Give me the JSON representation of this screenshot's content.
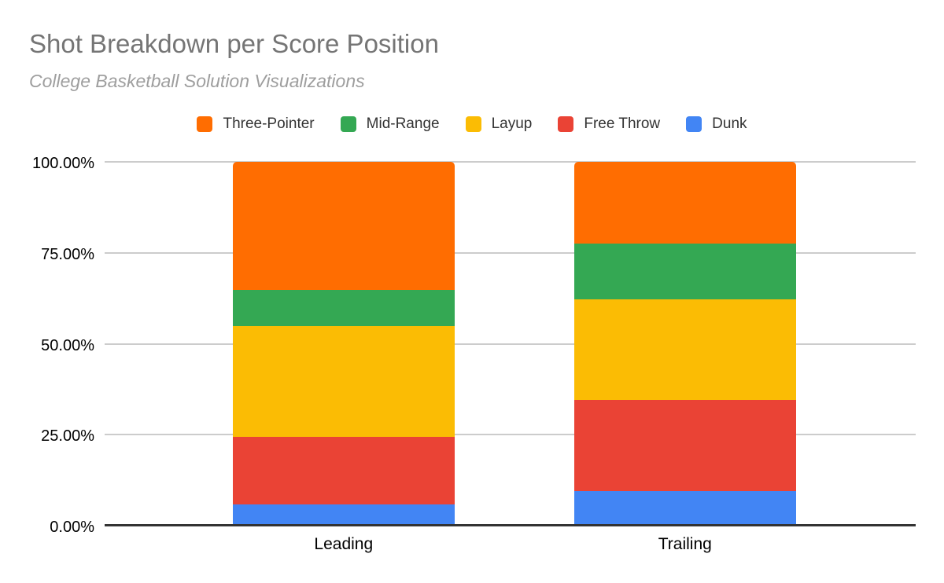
{
  "header": {
    "title": "Shot Breakdown per Score Position",
    "subtitle": "College Basketball Solution Visualizations"
  },
  "chart_data": {
    "type": "bar",
    "stacked": true,
    "percent_stacked": true,
    "title": "Shot Breakdown per Score Position",
    "subtitle": "College Basketball Solution Visualizations",
    "categories": [
      "Leading",
      "Trailing"
    ],
    "series": [
      {
        "name": "Three-Pointer",
        "color": "#FF6D01",
        "values": [
          35.3,
          22.4
        ]
      },
      {
        "name": "Mid-Range",
        "color": "#34A853",
        "values": [
          9.8,
          15.5
        ]
      },
      {
        "name": "Layup",
        "color": "#FBBC04",
        "values": [
          30.4,
          27.6
        ]
      },
      {
        "name": "Free Throw",
        "color": "#EA4335",
        "values": [
          18.6,
          25.0
        ]
      },
      {
        "name": "Dunk",
        "color": "#4285F4",
        "values": [
          5.9,
          9.5
        ]
      }
    ],
    "xlabel": "",
    "ylabel": "",
    "ylim": [
      0,
      100
    ],
    "yticks": [
      {
        "value": 0,
        "label": "0.00%"
      },
      {
        "value": 25,
        "label": "25.00%"
      },
      {
        "value": 50,
        "label": "50.00%"
      },
      {
        "value": 75,
        "label": "75.00%"
      },
      {
        "value": 100,
        "label": "100.00%"
      }
    ],
    "legend_position": "top",
    "grid": true
  },
  "styles": {
    "background": "#ffffff",
    "grid_color": "#cccccc",
    "axis_color": "#333333",
    "title_color": "#757575",
    "subtitle_color": "#9e9e9e",
    "tick_label_color": "#000000",
    "legend_text_color": "#333333"
  }
}
